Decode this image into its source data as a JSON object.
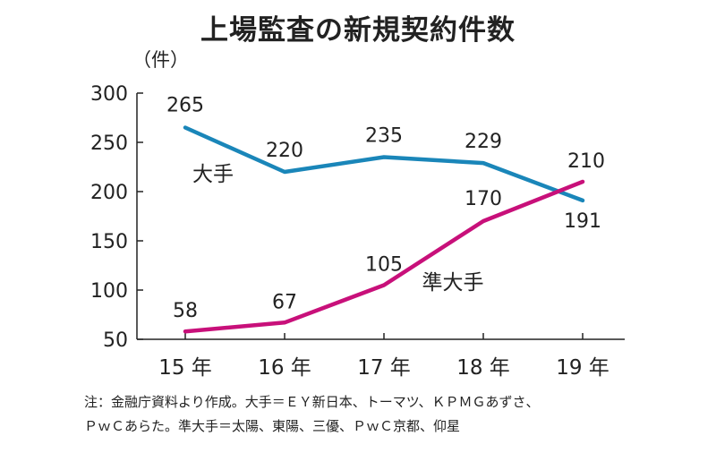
{
  "chart_data": {
    "type": "line",
    "title": "上場監査の新規契約件数",
    "unit_label": "（件）",
    "categories": [
      "15 年",
      "16 年",
      "17 年",
      "18 年",
      "19 年"
    ],
    "ylim": [
      50,
      300
    ],
    "yticks": [
      50,
      100,
      150,
      200,
      250,
      300
    ],
    "series": [
      {
        "name": "大手",
        "color": "#1a86b9",
        "values": [
          265,
          220,
          235,
          229,
          191
        ]
      },
      {
        "name": "準大手",
        "color": "#c8107a",
        "values": [
          58,
          67,
          105,
          170,
          210
        ]
      }
    ],
    "grid": false,
    "legend": "inline"
  },
  "notes": {
    "line1": "注：金融庁資料より作成。大手＝ＥＹ新日本、トーマツ、ＫＰＭＧあずさ、",
    "line2": "ＰｗＣあらた。準大手＝太陽、東陽、三優、ＰｗＣ京都、仰星"
  }
}
